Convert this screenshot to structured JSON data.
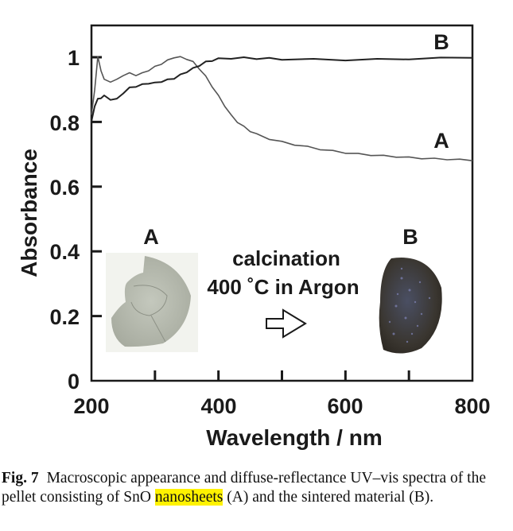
{
  "chart_data": {
    "type": "line",
    "title": "",
    "xlabel": "Wavelength / nm",
    "ylabel": "Absorbance",
    "xlim": [
      200,
      800
    ],
    "ylim": [
      0,
      1.1
    ],
    "x_ticks": [
      200,
      400,
      600,
      800
    ],
    "x_tick_labels": [
      "200",
      "400",
      "600",
      "800"
    ],
    "x_minor_ticks": [
      300,
      400,
      500,
      600,
      700
    ],
    "y_ticks": [
      0,
      0.2,
      0.4,
      0.6,
      0.8,
      1
    ],
    "y_tick_labels": [
      "0",
      "0.2",
      "0.4",
      "0.6",
      "0.8",
      "1"
    ],
    "grid": false,
    "series": [
      {
        "name": "A",
        "color": "#555555",
        "x": [
          200,
          205,
          210,
          215,
          220,
          230,
          240,
          250,
          260,
          270,
          280,
          290,
          300,
          310,
          320,
          330,
          340,
          350,
          360,
          370,
          380,
          390,
          400,
          410,
          420,
          430,
          440,
          450,
          460,
          480,
          500,
          520,
          540,
          560,
          580,
          600,
          620,
          640,
          660,
          680,
          700,
          720,
          740,
          760,
          780,
          800
        ],
        "y": [
          0.82,
          0.9,
          1.0,
          0.96,
          0.93,
          0.925,
          0.93,
          0.945,
          0.95,
          0.945,
          0.95,
          0.96,
          0.97,
          0.98,
          0.99,
          1.0,
          1.0,
          0.995,
          0.985,
          0.965,
          0.94,
          0.91,
          0.88,
          0.85,
          0.82,
          0.8,
          0.785,
          0.772,
          0.762,
          0.748,
          0.738,
          0.73,
          0.723,
          0.716,
          0.71,
          0.705,
          0.701,
          0.698,
          0.695,
          0.693,
          0.69,
          0.688,
          0.686,
          0.685,
          0.683,
          0.682
        ]
      },
      {
        "name": "B",
        "color": "#222222",
        "x": [
          200,
          205,
          210,
          215,
          220,
          230,
          240,
          250,
          260,
          270,
          280,
          290,
          300,
          310,
          320,
          330,
          340,
          350,
          360,
          370,
          380,
          390,
          400,
          420,
          440,
          460,
          480,
          500,
          550,
          600,
          650,
          700,
          750,
          800
        ],
        "y": [
          0.8,
          0.85,
          0.87,
          0.875,
          0.88,
          0.87,
          0.87,
          0.89,
          0.905,
          0.91,
          0.915,
          0.92,
          0.92,
          0.925,
          0.93,
          0.935,
          0.945,
          0.955,
          0.965,
          0.975,
          0.985,
          0.99,
          0.995,
          0.997,
          0.998,
          0.996,
          0.996,
          0.994,
          0.993,
          0.992,
          0.993,
          0.995,
          0.997,
          1.0
        ]
      }
    ],
    "annotations": [
      "A",
      "B",
      "calcination",
      "400 ˚C in Argon"
    ]
  },
  "labels": {
    "series_A": "A",
    "series_B": "B",
    "pellet_A": "A",
    "pellet_B": "B",
    "process_line1": "calcination",
    "process_line2": "400 ˚C in Argon"
  },
  "caption": {
    "fig_label": "Fig. 7",
    "text_part1": "Macroscopic appearance and diffuse-reflectance UV–vis spectra of the pellet consisting of SnO ",
    "highlight": "nanosheets",
    "text_part2": " (A) and the sintered material (B)."
  }
}
